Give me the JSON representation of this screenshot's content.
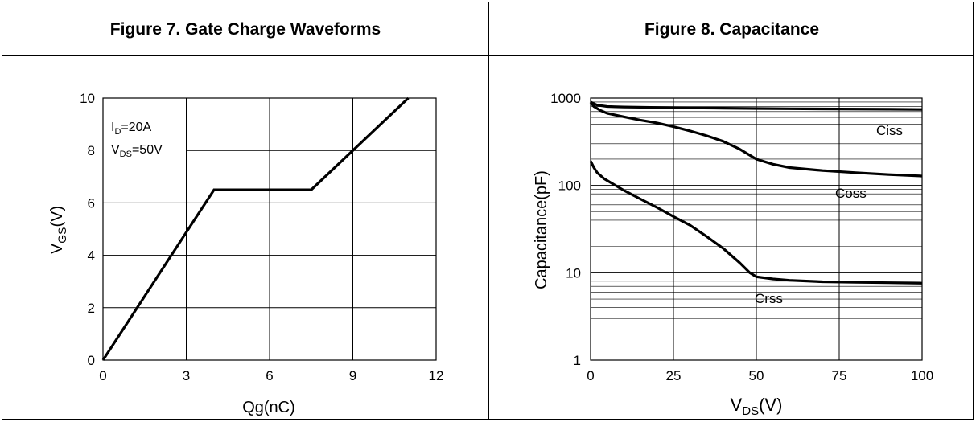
{
  "chart_data": [
    {
      "title": "Figure 7. Gate Charge Waveforms",
      "type": "line",
      "xlabel": "Qg(nC)",
      "ylabel_main": "V",
      "ylabel_sub": "GS",
      "ylabel_tail": "(V)",
      "xlim": [
        0,
        12
      ],
      "ylim": [
        0,
        10
      ],
      "x_ticks": [
        0,
        3,
        6,
        9,
        12
      ],
      "y_ticks": [
        0,
        2,
        4,
        6,
        8,
        10
      ],
      "grid": true,
      "annotations": {
        "line1_main": "I",
        "line1_sub": "D",
        "line1_tail": "=20A",
        "line2_main": "V",
        "line2_sub": "DS",
        "line2_tail": "=50V"
      },
      "series": [
        {
          "x": [
            0,
            4.0,
            7.5,
            11.0
          ],
          "y": [
            0,
            6.5,
            6.5,
            10
          ]
        }
      ]
    },
    {
      "title": "Figure 8. Capacitance",
      "type": "line",
      "xlabel_main": "V",
      "xlabel_sub": "DS",
      "xlabel_tail": "(V)",
      "ylabel": "Capacitance(pF)",
      "xlim": [
        0,
        100
      ],
      "ylim": [
        1,
        1000
      ],
      "yscale": "log",
      "x_ticks": [
        0,
        25,
        50,
        75,
        100
      ],
      "y_ticks": [
        1,
        10,
        100,
        1000
      ],
      "grid": true,
      "series": [
        {
          "name": "Ciss",
          "x": [
            0,
            2,
            5,
            10,
            20,
            30,
            40,
            50,
            60,
            75,
            90,
            100
          ],
          "y": [
            900,
            830,
            800,
            790,
            780,
            770,
            765,
            760,
            755,
            750,
            745,
            740
          ]
        },
        {
          "name": "Coss",
          "x": [
            0,
            1,
            3,
            5,
            10,
            15,
            20,
            25,
            30,
            35,
            40,
            45,
            50,
            55,
            60,
            70,
            80,
            90,
            100
          ],
          "y": [
            900,
            800,
            720,
            670,
            610,
            560,
            520,
            470,
            420,
            370,
            320,
            260,
            200,
            175,
            160,
            148,
            140,
            133,
            128
          ]
        },
        {
          "name": "Crss",
          "x": [
            0,
            1,
            2,
            4,
            6,
            10,
            15,
            20,
            25,
            30,
            35,
            40,
            45,
            48,
            50,
            55,
            60,
            70,
            80,
            90,
            100
          ],
          "y": [
            190,
            160,
            140,
            120,
            108,
            88,
            70,
            56,
            44,
            35,
            26,
            19,
            13,
            10,
            9,
            8.5,
            8.2,
            7.9,
            7.8,
            7.7,
            7.6
          ]
        }
      ]
    }
  ]
}
